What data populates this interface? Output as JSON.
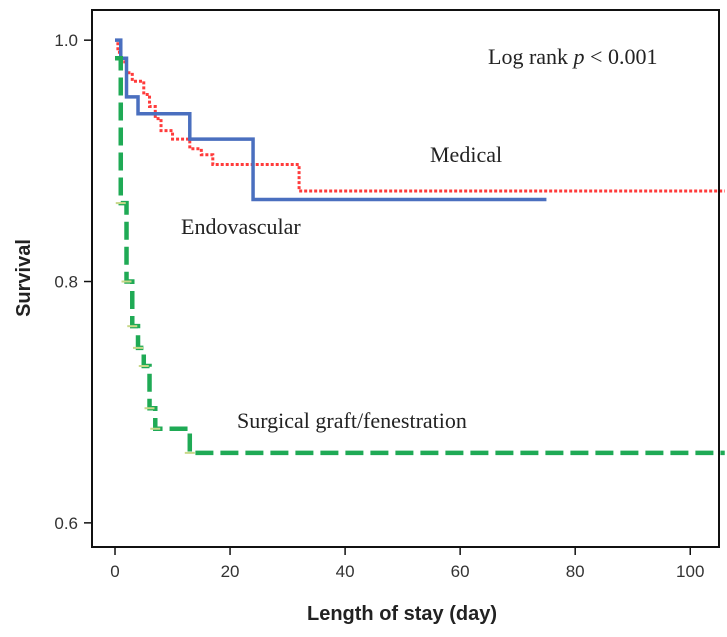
{
  "chart_data": {
    "type": "line",
    "subtype": "kaplan-meier",
    "title": "",
    "xlabel": "Length of stay (day)",
    "ylabel": "Survival",
    "xlim": [
      -4,
      105
    ],
    "ylim": [
      0.58,
      1.025
    ],
    "xticks": [
      0,
      20,
      40,
      60,
      80,
      100
    ],
    "xtick_labels": [
      "0",
      "20",
      "40",
      "60",
      "80",
      "100"
    ],
    "yticks": [
      0.6,
      0.8,
      1.0
    ],
    "ytick_labels": [
      "0.6",
      "0.8",
      "1.0"
    ],
    "annotation": {
      "text_prefix": "Log rank ",
      "p_symbol": "p",
      "text_suffix": " < 0.001"
    },
    "series": [
      {
        "name": "Medical",
        "color": "#ff3b3b",
        "style": "dotted",
        "steps": [
          [
            0,
            1.0
          ],
          [
            0.5,
            0.99
          ],
          [
            1,
            0.982
          ],
          [
            2,
            0.973
          ],
          [
            3,
            0.966
          ],
          [
            5,
            0.955
          ],
          [
            6,
            0.945
          ],
          [
            7,
            0.935
          ],
          [
            8,
            0.925
          ],
          [
            10,
            0.918
          ],
          [
            13,
            0.91
          ],
          [
            15,
            0.905
          ],
          [
            17,
            0.897
          ],
          [
            32,
            0.875
          ],
          [
            106,
            0.875
          ]
        ]
      },
      {
        "name": "Endovascular",
        "color": "#4a6fbf",
        "style": "solid",
        "steps": [
          [
            0,
            1.0
          ],
          [
            1,
            0.985
          ],
          [
            2,
            0.953
          ],
          [
            4,
            0.939
          ],
          [
            13,
            0.918
          ],
          [
            24,
            0.868
          ],
          [
            75,
            0.868
          ]
        ]
      },
      {
        "name": "Surgical graft/fenestration",
        "color": "#1faa55",
        "style": "dashed",
        "steps": [
          [
            0,
            0.985
          ],
          [
            1,
            0.865
          ],
          [
            2,
            0.8
          ],
          [
            3,
            0.763
          ],
          [
            4,
            0.745
          ],
          [
            5,
            0.73
          ],
          [
            6,
            0.695
          ],
          [
            7,
            0.678
          ],
          [
            13,
            0.658
          ],
          [
            106,
            0.658
          ]
        ]
      }
    ]
  }
}
